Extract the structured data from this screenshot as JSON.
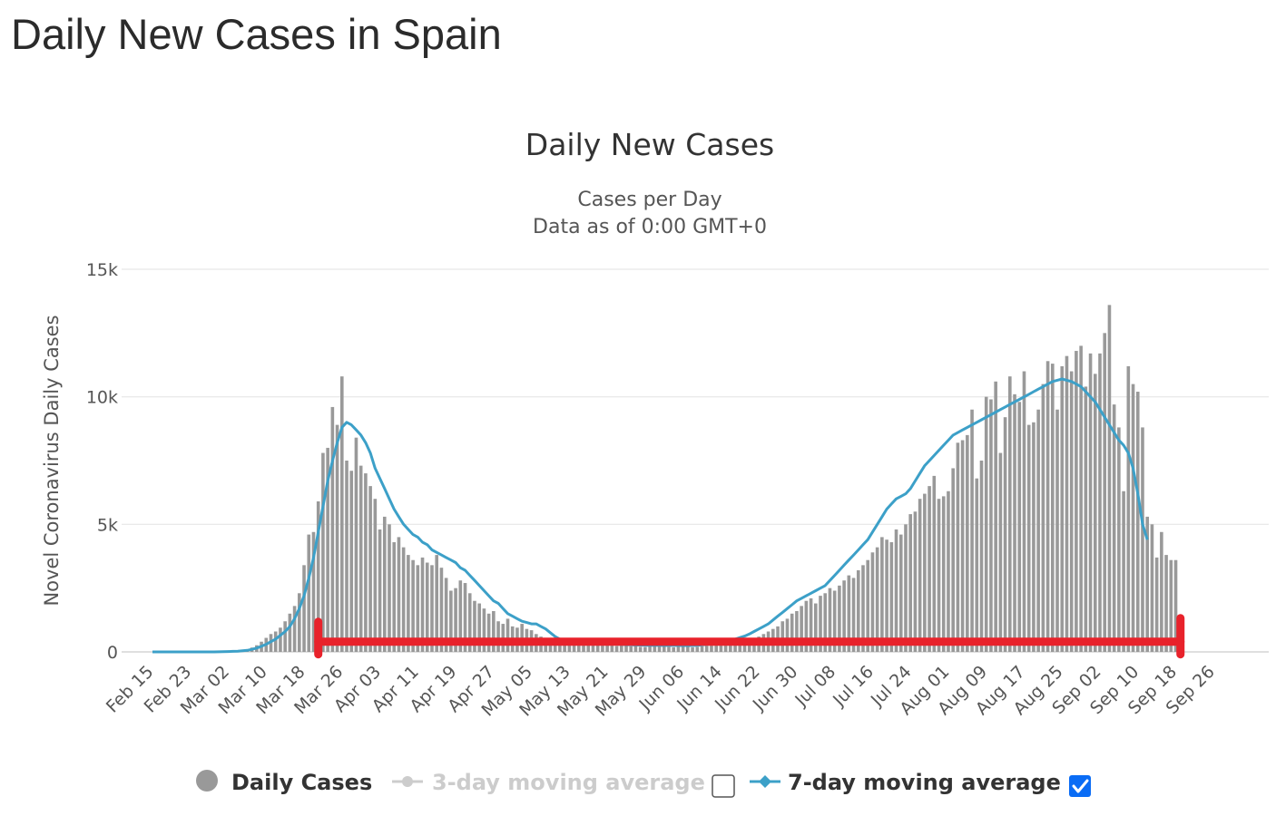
{
  "page": {
    "title": "Daily New Cases in Spain"
  },
  "chart_data": {
    "type": "bar",
    "title": "Daily New Cases",
    "subtitle_line1": "Cases per Day",
    "subtitle_line2": "Data as of 0:00 GMT+0",
    "ylabel": "Novel Coronavirus Daily Cases",
    "xlabel": "",
    "ylim": [
      0,
      15000
    ],
    "y_ticks": [
      0,
      5000,
      10000,
      15000
    ],
    "y_tick_labels": [
      "0",
      "5k",
      "10k",
      "15k"
    ],
    "x_tick_labels": [
      "Feb 15",
      "Feb 23",
      "Mar 02",
      "Mar 10",
      "Mar 18",
      "Mar 26",
      "Apr 03",
      "Apr 11",
      "Apr 19",
      "Apr 27",
      "May 05",
      "May 13",
      "May 21",
      "May 29",
      "Jun 06",
      "Jun 14",
      "Jun 22",
      "Jun 30",
      "Jul 08",
      "Jul 16",
      "Jul 24",
      "Aug 01",
      "Aug 09",
      "Aug 17",
      "Aug 25",
      "Sep 02",
      "Sep 10",
      "Sep 18",
      "Sep 26"
    ],
    "series": [
      {
        "name": "Daily Cases",
        "type": "bar",
        "color": "#999999",
        "values": [
          0,
          0,
          0,
          0,
          0,
          0,
          0,
          0,
          0,
          0,
          0,
          0,
          0,
          5,
          10,
          15,
          20,
          30,
          45,
          60,
          100,
          170,
          260,
          400,
          550,
          700,
          800,
          950,
          1200,
          1500,
          1800,
          2300,
          3400,
          4600,
          4700,
          5900,
          7800,
          8000,
          9600,
          8900,
          10800,
          7500,
          7100,
          8400,
          7300,
          7000,
          6500,
          6000,
          4800,
          5300,
          5000,
          4300,
          4500,
          4100,
          3800,
          3600,
          3400,
          3700,
          3500,
          3400,
          3800,
          3300,
          2900,
          2400,
          2500,
          2800,
          2700,
          2300,
          2000,
          1900,
          1700,
          1500,
          1600,
          1200,
          1100,
          1300,
          1000,
          950,
          1100,
          900,
          850,
          700,
          600,
          500,
          450,
          420,
          380,
          400,
          350,
          300,
          330,
          300,
          280,
          350,
          300,
          280,
          320,
          250,
          230,
          300,
          250,
          220,
          270,
          200,
          190,
          230,
          250,
          300,
          220,
          200,
          180,
          210,
          230,
          250,
          180,
          200,
          220,
          240,
          260,
          280,
          300,
          320,
          350,
          380,
          400,
          450,
          500,
          550,
          600,
          700,
          800,
          900,
          1000,
          1200,
          1300,
          1500,
          1600,
          1800,
          2000,
          2100,
          1900,
          2200,
          2300,
          2500,
          2400,
          2600,
          2800,
          3000,
          2900,
          3200,
          3400,
          3600,
          3900,
          4100,
          4500,
          4400,
          4300,
          4800,
          4600,
          5000,
          5400,
          5500,
          6000,
          6200,
          6500,
          6900,
          6000,
          6100,
          6300,
          7200,
          8200,
          8300,
          8500,
          9500,
          6800,
          7500,
          10000,
          9900,
          10600,
          7800,
          9200,
          10800,
          10100,
          9800,
          11000,
          8900,
          9000,
          9500,
          10500,
          11400,
          11300,
          9500,
          11200,
          11600,
          11000,
          11800,
          12000,
          10400,
          11700,
          10900,
          11700,
          12500,
          13600,
          9700,
          8800,
          6300,
          11200,
          10500,
          10200,
          8800,
          5300,
          5000,
          3700,
          4700,
          3800,
          3600,
          3600
        ]
      },
      {
        "name": "3-day moving average",
        "type": "line",
        "color": "#bbbbbb",
        "visible": false,
        "values": []
      },
      {
        "name": "7-day moving average",
        "type": "line",
        "color": "#3ca0c8",
        "visible": true,
        "values": [
          0,
          0,
          0,
          0,
          0,
          0,
          0,
          0,
          0,
          0,
          0,
          0,
          0,
          0,
          5,
          10,
          15,
          20,
          30,
          45,
          60,
          100,
          150,
          220,
          300,
          400,
          500,
          650,
          800,
          1000,
          1300,
          1700,
          2200,
          2900,
          3700,
          4700,
          5700,
          6700,
          7500,
          8200,
          8800,
          9000,
          8900,
          8700,
          8500,
          8200,
          7800,
          7200,
          6800,
          6400,
          6000,
          5600,
          5300,
          5000,
          4800,
          4600,
          4500,
          4300,
          4200,
          4000,
          3900,
          3800,
          3700,
          3600,
          3500,
          3300,
          3200,
          3000,
          2800,
          2600,
          2400,
          2200,
          2000,
          1900,
          1700,
          1500,
          1400,
          1300,
          1200,
          1150,
          1100,
          1100,
          1000,
          900,
          750,
          600,
          500,
          450,
          420,
          400,
          380,
          370,
          360,
          350,
          340,
          330,
          320,
          310,
          300,
          290,
          280,
          275,
          270,
          265,
          260,
          258,
          256,
          255,
          254,
          253,
          252,
          251,
          250,
          250,
          250,
          260,
          270,
          290,
          310,
          340,
          370,
          410,
          450,
          500,
          560,
          620,
          700,
          800,
          900,
          1000,
          1100,
          1250,
          1400,
          1550,
          1700,
          1850,
          2000,
          2100,
          2200,
          2300,
          2400,
          2500,
          2600,
          2800,
          3000,
          3200,
          3400,
          3600,
          3800,
          4000,
          4200,
          4400,
          4700,
          5000,
          5300,
          5600,
          5800,
          6000,
          6100,
          6200,
          6400,
          6700,
          7000,
          7300,
          7500,
          7700,
          7900,
          8100,
          8300,
          8500,
          8600,
          8700,
          8800,
          8900,
          9000,
          9100,
          9200,
          9300,
          9400,
          9500,
          9600,
          9700,
          9800,
          9900,
          10000,
          10100,
          10200,
          10300,
          10400,
          10500,
          10600,
          10650,
          10700,
          10650,
          10600,
          10500,
          10400,
          10200,
          10000,
          9800,
          9500,
          9200,
          8900,
          8600,
          8300,
          8100,
          7800,
          7200,
          6200,
          5000,
          4400
        ]
      }
    ],
    "legend": [
      {
        "label": "Daily Cases",
        "color": "#333333",
        "marker": "circle-gray"
      },
      {
        "label": "3-day moving average",
        "color": "#cccccc",
        "marker": "line-diamond-gray",
        "checked": false
      },
      {
        "label": "7-day moving average",
        "color": "#333333",
        "marker": "line-diamond-blue",
        "checked": true
      }
    ],
    "annotation": {
      "type": "range-bracket",
      "color": "#e8222b",
      "from_label": "Mar 21",
      "to_label": "Sep 19",
      "level": 400
    }
  }
}
